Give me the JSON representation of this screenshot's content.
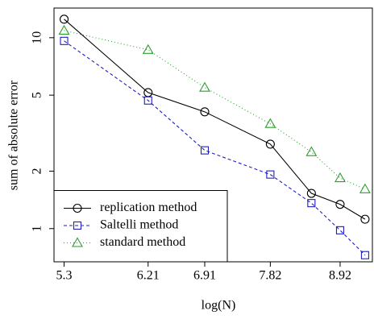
{
  "chart_data": {
    "type": "line",
    "x_label": "log(N)",
    "y_label": "sum of absolute error",
    "x": [
      5.3,
      6.21,
      6.91,
      7.82,
      8.45,
      8.92,
      9.35
    ],
    "xticks": [
      5.3,
      6.21,
      6.91,
      7.82,
      8.92
    ],
    "xlim": [
      5.2,
      9.48
    ],
    "xlog": true,
    "ylim": [
      0.67,
      14.3
    ],
    "yticks": [
      1,
      2,
      5,
      10
    ],
    "ylog": true,
    "legend": "bottom-left",
    "series": [
      {
        "name": "replication method",
        "color": "#000000",
        "marker": "circle",
        "linestyle": "solid",
        "values": [
          12.5,
          5.16,
          4.09,
          2.77,
          1.53,
          1.34,
          1.12
        ]
      },
      {
        "name": "Saltelli method",
        "color": "#1f1fbf",
        "marker": "square",
        "linestyle": "dashed",
        "values": [
          9.62,
          4.69,
          2.57,
          1.92,
          1.36,
          0.98,
          0.726
        ]
      },
      {
        "name": "standard method",
        "color": "#2e9e2e",
        "marker": "triangle",
        "linestyle": "dotted",
        "values": [
          10.9,
          8.64,
          5.48,
          3.54,
          2.52,
          1.84,
          1.61
        ]
      }
    ]
  }
}
